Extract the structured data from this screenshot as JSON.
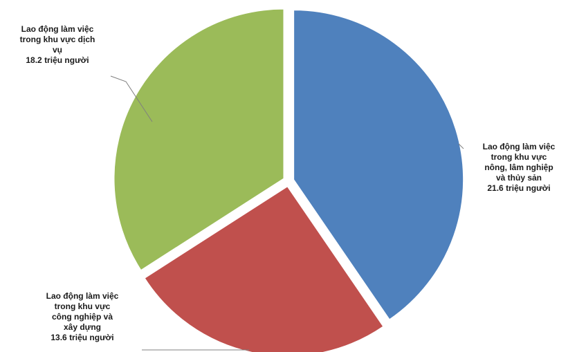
{
  "chart_data": {
    "type": "pie",
    "slices": [
      {
        "id": "nong-lam-thuy-san",
        "value": 21.6,
        "color": "#4f81bd",
        "label_lines": [
          "Lao động làm việc",
          "trong khu vực",
          "nông, lâm nghiệp",
          "và thủy sản",
          "21.6 triệu người"
        ]
      },
      {
        "id": "cong-nghiep-xay-dung",
        "value": 13.6,
        "color": "#c0504d",
        "label_lines": [
          "Lao động làm việc",
          "trong khu vực",
          "công nghiệp và",
          "xây dựng",
          "13.6 triệu người"
        ]
      },
      {
        "id": "dich-vu",
        "value": 18.2,
        "color": "#9bbb59",
        "label_lines": [
          "Lao động làm việc",
          "trong khu vực dịch",
          "vụ",
          "18.2 triệu người"
        ]
      }
    ],
    "units": "triệu người",
    "legend": "none",
    "start_angle_deg": 0,
    "exploded": true
  }
}
